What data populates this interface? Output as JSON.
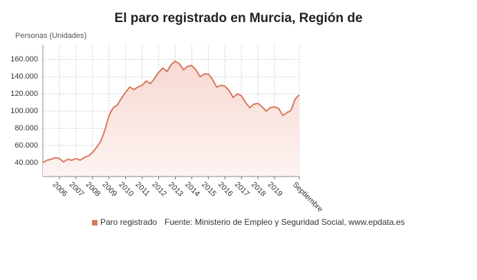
{
  "chart_data": {
    "type": "area",
    "title": "El paro registrado en Murcia, Región de",
    "y_axis_label": "Personas (Unidades)",
    "source": "Fuente: Ministerio de Empleo y Seguridad Social, www.epdata.es",
    "categories": [
      null,
      null,
      null,
      null,
      "2006",
      null,
      null,
      null,
      "2007",
      null,
      null,
      null,
      "2008",
      null,
      null,
      null,
      "2009",
      null,
      null,
      null,
      "2010",
      null,
      null,
      null,
      "2011",
      null,
      null,
      null,
      "2012",
      null,
      null,
      null,
      "2013",
      null,
      null,
      null,
      "2014",
      null,
      null,
      null,
      "2015",
      null,
      null,
      null,
      "2016",
      null,
      null,
      null,
      "2017",
      null,
      null,
      null,
      "2018",
      null,
      null,
      null,
      "2019",
      null,
      null,
      null,
      null,
      null,
      "Septiembre"
    ],
    "series": [
      {
        "name": "Paro registrado",
        "color": "#d9785c",
        "values": [
          40000,
          43000,
          44000,
          46000,
          45000,
          41000,
          44000,
          43000,
          45000,
          43000,
          46000,
          48000,
          52000,
          58000,
          65000,
          78000,
          95000,
          104000,
          107000,
          115000,
          122000,
          128000,
          125000,
          128000,
          130000,
          135000,
          132000,
          138000,
          145000,
          150000,
          146000,
          154000,
          158000,
          155000,
          148000,
          152000,
          153000,
          148000,
          140000,
          143000,
          143000,
          137000,
          128000,
          130000,
          129000,
          124000,
          116000,
          120000,
          118000,
          110000,
          104000,
          108000,
          109000,
          105000,
          100000,
          104000,
          105000,
          103000,
          95000,
          98000,
          101000,
          114000,
          119000
        ]
      }
    ],
    "ylim": [
      24000,
      177000
    ],
    "yticks": [
      {
        "value": 40000,
        "label": "40.000"
      },
      {
        "value": 60000,
        "label": "60.000"
      },
      {
        "value": 80000,
        "label": "80.000"
      },
      {
        "value": 100000,
        "label": "100.000"
      },
      {
        "value": 120000,
        "label": "120.000"
      },
      {
        "value": 140000,
        "label": "140.000"
      },
      {
        "value": 160000,
        "label": "160.000"
      }
    ],
    "grid": true
  }
}
